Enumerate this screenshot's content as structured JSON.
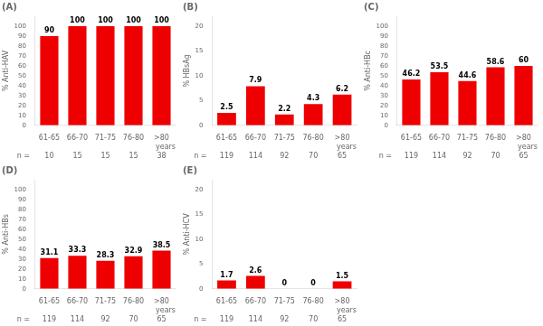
{
  "chart_data": [
    {
      "type": "bar",
      "title": "(A)",
      "ylabel": "% Anti-HAV",
      "xlabel": "years",
      "categories": [
        "61-65",
        "66-70",
        "71-75",
        "76-80",
        ">80"
      ],
      "values": [
        90,
        100,
        100,
        100,
        100
      ],
      "color": "#ee0000",
      "ylim": [
        0,
        110
      ],
      "yticks": [
        0,
        10,
        20,
        30,
        40,
        50,
        60,
        70,
        80,
        90,
        100
      ],
      "grid": false,
      "data_labels": true,
      "n_label": "n =",
      "n": [
        "10",
        "15",
        "15",
        "15",
        "38"
      ]
    },
    {
      "type": "bar",
      "title": "(B)",
      "ylabel": "% HBsAg",
      "xlabel": "years",
      "categories": [
        "61-65",
        "66-70",
        "71-75",
        "76-80",
        ">80"
      ],
      "values": [
        2.5,
        7.9,
        2.2,
        4.3,
        6.2
      ],
      "color": "#ee0000",
      "ylim": [
        0,
        22
      ],
      "yticks": [
        0,
        5,
        10,
        15,
        20
      ],
      "grid": false,
      "data_labels": true,
      "n_label": "n =",
      "n": [
        "119",
        "114",
        "92",
        "70",
        "65"
      ]
    },
    {
      "type": "bar",
      "title": "(C)",
      "ylabel": "% Anti-HBc",
      "xlabel": "years",
      "categories": [
        "61-65",
        "66-70",
        "71-75",
        "76-80",
        ">80"
      ],
      "values": [
        46.2,
        53.5,
        44.6,
        58.6,
        60
      ],
      "color": "#ee0000",
      "ylim": [
        0,
        110
      ],
      "yticks": [
        0,
        10,
        20,
        30,
        40,
        50,
        60,
        70,
        80,
        90,
        100
      ],
      "grid": false,
      "data_labels": true,
      "n_label": "n =",
      "n": [
        "119",
        "114",
        "92",
        "70",
        "65"
      ]
    },
    {
      "type": "bar",
      "title": "(D)",
      "ylabel": "% Anti-HBs",
      "xlabel": "years",
      "categories": [
        "61-65",
        "66-70",
        "71-75",
        "76-80",
        ">80"
      ],
      "values": [
        31.1,
        33.3,
        28.3,
        32.9,
        38.5
      ],
      "color": "#ee0000",
      "ylim": [
        0,
        110
      ],
      "yticks": [
        0,
        10,
        20,
        30,
        40,
        50,
        60,
        70,
        80,
        90,
        100
      ],
      "grid": false,
      "data_labels": true,
      "n_label": "n =",
      "n": [
        "119",
        "114",
        "92",
        "70",
        "65"
      ]
    },
    {
      "type": "bar",
      "title": "(E)",
      "ylabel": "% Anti-HCV",
      "xlabel": "years",
      "categories": [
        "61-65",
        "66-70",
        "71-75",
        "76-80",
        ">80"
      ],
      "values": [
        1.7,
        2.6,
        0,
        0,
        1.5
      ],
      "color": "#ee0000",
      "ylim": [
        0,
        22
      ],
      "yticks": [
        0,
        5,
        10,
        15,
        20
      ],
      "grid": false,
      "data_labels": true,
      "n_label": "n =",
      "n": [
        "119",
        "114",
        "92",
        "70",
        "65"
      ]
    }
  ]
}
